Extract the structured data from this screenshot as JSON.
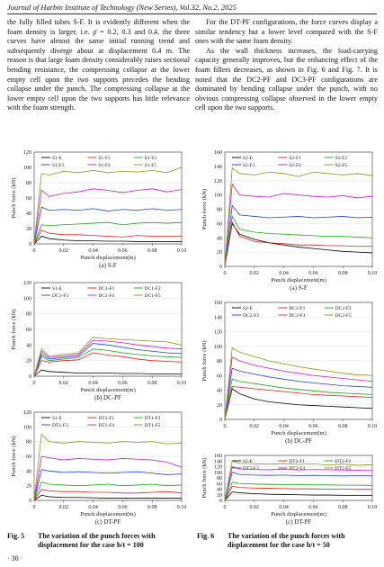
{
  "header": "Journal of Harbin Institute of Technology (New Series), Vol.32, No.2, 2025",
  "left_paragraphs": [
    "the fully filled tubes S-F. It is evidently different when the foam density is larger, i.e. ρ̄ = 0.2, 0.3 and 0.4, the three curves have almost the same initial running trend and subsequently diverge about at displacement 0.4 m. The reason is that large foam density considerably raises sectional bending resistance, the compressing collapse at the lower empty cell upon the two supports precedes the bending collapse under the punch. The compressing collapse at the lower empty cell upon the two supports has little relevance with the foam strength."
  ],
  "right_paragraphs": [
    "For the DT-PF configurations, the force curves display a similar tendency but a lower level compared with the S-F ones with the same foam density.",
    "As the wall thickness increases, the load-carrying capacity generally improves, but the enhancing effect of the foam fillers decreases, as shown in Fig. 6 and Fig. 7. It is noted that the DC2-PF and DC3-PF configurations are dominated by bending collapse under the punch, with no obvious compressing collapse observed in the lower empty cell upon the two supports."
  ],
  "figure_captions": [
    {
      "label": "Fig. 5",
      "text": "The variation of the punch forces with displacement for the case b/t = 100"
    },
    {
      "label": "Fig. 6",
      "text": "The variation of the punch forces with displacement for the case b/t = 50"
    }
  ],
  "page_number": "· 30 ·",
  "chart_data": [
    {
      "type": "line",
      "subtitle": "(a) S-F",
      "x_label": "Punch displacement(m)",
      "y_label": "Punch force (kN)",
      "x": [
        0,
        0.005,
        0.01,
        0.02,
        0.03,
        0.04,
        0.05,
        0.06,
        0.07,
        0.08,
        0.09,
        0.1
      ],
      "xlim": [
        0,
        0.1
      ],
      "xticks": [
        0,
        0.02,
        0.04,
        0.06,
        0.08,
        {
          "value": 0.1,
          "label": "0.10"
        }
      ],
      "ylim": [
        0,
        120
      ],
      "yticks": [
        0,
        20,
        40,
        60,
        80,
        100,
        120
      ],
      "grid": true,
      "series": [
        {
          "name": "S1-E",
          "color": "#000000",
          "values": [
            0,
            10,
            7,
            5,
            4,
            4,
            3.5,
            3.5,
            3,
            3,
            3,
            3
          ]
        },
        {
          "name": "S1-F1",
          "color": "#e02020",
          "values": [
            0,
            18,
            14,
            12,
            12,
            11,
            10,
            9,
            11,
            10,
            10,
            10
          ]
        },
        {
          "name": "S1-F2",
          "color": "#20a020",
          "values": [
            0,
            25,
            24,
            25,
            26,
            27,
            28,
            25,
            27,
            28,
            27,
            28
          ]
        },
        {
          "name": "S1-F3",
          "color": "#2040d0",
          "values": [
            0,
            48,
            44,
            45,
            44,
            46,
            43,
            45,
            44,
            46,
            44,
            45
          ]
        },
        {
          "name": "S1-F4",
          "color": "#c020c0",
          "values": [
            0,
            70,
            62,
            66,
            68,
            72,
            70,
            67,
            70,
            72,
            68,
            71
          ]
        },
        {
          "name": "S1-F5",
          "color": "#909020",
          "values": [
            0,
            92,
            90,
            95,
            93,
            96,
            93,
            95,
            94,
            96,
            93,
            100
          ]
        }
      ]
    },
    {
      "type": "line",
      "subtitle": "(b) DC-PF",
      "x_label": "Punch displacement(m)",
      "y_label": "Punch force (kN)",
      "x": [
        0,
        0.005,
        0.01,
        0.02,
        0.03,
        0.04,
        0.05,
        0.06,
        0.07,
        0.08,
        0.09,
        0.1
      ],
      "xlim": [
        0,
        0.1
      ],
      "xticks": [
        0,
        0.02,
        0.04,
        0.06,
        0.08,
        {
          "value": 0.1,
          "label": "0.10"
        }
      ],
      "ylim": [
        0,
        120
      ],
      "yticks": [
        0,
        20,
        40,
        60,
        80,
        100,
        120
      ],
      "grid": true,
      "series": [
        {
          "name": "S1-E",
          "color": "#000000",
          "values": [
            0,
            8,
            6,
            5,
            4,
            4,
            4,
            3.5,
            3.5,
            3,
            3,
            3
          ]
        },
        {
          "name": "DC1-F1",
          "color": "#e02020",
          "values": [
            0,
            20,
            18,
            20,
            21,
            30,
            27,
            25,
            22,
            20,
            19,
            18
          ]
        },
        {
          "name": "DC1-F2",
          "color": "#20a020",
          "values": [
            0,
            25,
            20,
            22,
            24,
            35,
            33,
            30,
            28,
            26,
            25,
            24
          ]
        },
        {
          "name": "DC1-F3",
          "color": "#2040d0",
          "values": [
            0,
            28,
            22,
            24,
            26,
            42,
            40,
            37,
            34,
            32,
            30,
            29
          ]
        },
        {
          "name": "DC1-F4",
          "color": "#c020c0",
          "values": [
            0,
            32,
            24,
            26,
            28,
            46,
            45,
            43,
            40,
            38,
            36,
            35
          ]
        },
        {
          "name": "DC1-F5",
          "color": "#909020",
          "values": [
            0,
            35,
            26,
            28,
            30,
            50,
            48,
            47,
            46,
            45,
            44,
            40
          ]
        }
      ]
    },
    {
      "type": "line",
      "subtitle": "(c) DT-PF",
      "x_label": "Punch displacement(m)",
      "y_label": "Punch force (kN)",
      "x": [
        0,
        0.005,
        0.01,
        0.02,
        0.03,
        0.04,
        0.05,
        0.06,
        0.07,
        0.08,
        0.09,
        0.1
      ],
      "xlim": [
        0,
        0.1
      ],
      "xticks": [
        0,
        0.02,
        0.04,
        0.06,
        0.08,
        {
          "value": 0.1,
          "label": "0.10"
        }
      ],
      "ylim": [
        0,
        120
      ],
      "yticks": [
        0,
        20,
        40,
        60,
        80,
        100,
        120
      ],
      "grid": true,
      "series": [
        {
          "name": "S1-E",
          "color": "#000000",
          "values": [
            0,
            7,
            5,
            4,
            4,
            3.5,
            3,
            3,
            3,
            3,
            3,
            3
          ]
        },
        {
          "name": "DT1-F1",
          "color": "#e02020",
          "values": [
            0,
            15,
            13,
            12,
            12,
            11,
            11,
            10,
            10,
            11,
            12,
            10
          ]
        },
        {
          "name": "DT1-F2",
          "color": "#20a020",
          "values": [
            0,
            25,
            22,
            21,
            20,
            21,
            22,
            20,
            21,
            22,
            20,
            21
          ]
        },
        {
          "name": "DT1-F3",
          "color": "#2040d0",
          "values": [
            0,
            42,
            40,
            38,
            39,
            38,
            37,
            38,
            39,
            37,
            35,
            36
          ]
        },
        {
          "name": "DT1-F4",
          "color": "#c020c0",
          "values": [
            0,
            60,
            58,
            55,
            57,
            56,
            55,
            57,
            56,
            55,
            52,
            45
          ]
        },
        {
          "name": "DT1-F5",
          "color": "#909020",
          "values": [
            0,
            90,
            80,
            78,
            80,
            79,
            78,
            80,
            79,
            80,
            77,
            78
          ]
        }
      ]
    },
    {
      "type": "line",
      "subtitle": "(a) S-F",
      "x_label": "Punch displacement(m)",
      "y_label": "Punch force (kN)",
      "x": [
        0,
        0.005,
        0.01,
        0.02,
        0.03,
        0.04,
        0.05,
        0.06,
        0.07,
        0.08,
        0.09,
        0.1
      ],
      "xlim": [
        0,
        0.1
      ],
      "xticks": [
        0,
        0.02,
        0.04,
        0.06,
        0.08,
        {
          "value": 0.1,
          "label": "0.10"
        }
      ],
      "ylim": [
        0,
        160
      ],
      "yticks": [
        0,
        20,
        40,
        60,
        80,
        100,
        120,
        140,
        160
      ],
      "grid": true,
      "series": [
        {
          "name": "S2-E",
          "color": "#000000",
          "values": [
            0,
            60,
            45,
            38,
            33,
            30,
            27,
            25,
            23,
            21,
            20,
            19
          ]
        },
        {
          "name": "S2-F1",
          "color": "#e02020",
          "values": [
            0,
            62,
            42,
            35,
            33,
            32,
            30,
            30,
            29,
            29,
            28,
            28
          ]
        },
        {
          "name": "S2-F2",
          "color": "#20a020",
          "values": [
            0,
            70,
            52,
            48,
            46,
            45,
            44,
            43,
            42,
            42,
            41,
            40
          ]
        },
        {
          "name": "S2-F3",
          "color": "#2040d0",
          "values": [
            0,
            85,
            72,
            70,
            68,
            69,
            70,
            68,
            69,
            70,
            68,
            69
          ]
        },
        {
          "name": "S2-F4",
          "color": "#c020c0",
          "values": [
            0,
            115,
            100,
            98,
            97,
            102,
            100,
            98,
            97,
            99,
            96,
            98
          ]
        },
        {
          "name": "S2-F5",
          "color": "#909020",
          "values": [
            0,
            138,
            130,
            128,
            132,
            130,
            126,
            132,
            130,
            128,
            130,
            127
          ]
        }
      ]
    },
    {
      "type": "line",
      "subtitle": "(b) DC-PF",
      "x_label": "Punch displacement(m)",
      "y_label": "Punch force (kN)",
      "x": [
        0,
        0.005,
        0.01,
        0.02,
        0.03,
        0.04,
        0.05,
        0.06,
        0.07,
        0.08,
        0.09,
        0.1
      ],
      "xlim": [
        0,
        0.1
      ],
      "xticks": [
        0,
        0.02,
        0.04,
        0.06,
        0.08,
        {
          "value": 0.1,
          "label": "0.10"
        }
      ],
      "ylim": [
        0,
        160
      ],
      "yticks": [
        0,
        20,
        40,
        60,
        80,
        100,
        120,
        140,
        160
      ],
      "grid": true,
      "series": [
        {
          "name": "S2-E",
          "color": "#000000",
          "values": [
            0,
            42,
            35,
            28,
            24,
            22,
            20,
            19,
            18,
            17,
            16,
            15
          ]
        },
        {
          "name": "DC2-F1",
          "color": "#e02020",
          "values": [
            0,
            45,
            44,
            42,
            40,
            38,
            36,
            34,
            33,
            32,
            31,
            30
          ]
        },
        {
          "name": "DC2-F2",
          "color": "#20a020",
          "values": [
            0,
            55,
            52,
            49,
            46,
            43,
            41,
            39,
            37,
            36,
            35,
            34
          ]
        },
        {
          "name": "DC2-F3",
          "color": "#2040d0",
          "values": [
            0,
            70,
            66,
            62,
            58,
            55,
            52,
            50,
            48,
            46,
            45,
            44
          ]
        },
        {
          "name": "DC2-F4",
          "color": "#c020c0",
          "values": [
            0,
            85,
            80,
            74,
            70,
            66,
            63,
            60,
            58,
            56,
            54,
            52
          ]
        },
        {
          "name": "DC2-F5",
          "color": "#909020",
          "values": [
            0,
            98,
            92,
            86,
            80,
            76,
            72,
            69,
            66,
            63,
            61,
            60
          ]
        }
      ]
    },
    {
      "type": "line",
      "subtitle": "(c) DT-PF",
      "x_label": "Punch displacement(m)",
      "y_label": "Punch force (kN)",
      "x": [
        0,
        0.005,
        0.01,
        0.02,
        0.03,
        0.04,
        0.05,
        0.06,
        0.07,
        0.08,
        0.09,
        0.1
      ],
      "xlim": [
        0,
        0.1
      ],
      "xticks": [
        0,
        0.02,
        0.04,
        0.06,
        0.08,
        {
          "value": 0.1,
          "label": "0.10"
        }
      ],
      "ylim": [
        0,
        160
      ],
      "yticks": [
        0,
        20,
        40,
        60,
        80,
        100,
        120,
        140,
        160
      ],
      "grid": true,
      "series": [
        {
          "name": "S2-E",
          "color": "#000000",
          "values": [
            0,
            30,
            27,
            24,
            22,
            21,
            20,
            19,
            19,
            18,
            18,
            18
          ]
        },
        {
          "name": "DT2-F1",
          "color": "#e02020",
          "values": [
            0,
            50,
            46,
            44,
            43,
            42,
            41,
            41,
            40,
            40,
            39,
            39
          ]
        },
        {
          "name": "DT2-F2",
          "color": "#20a020",
          "values": [
            0,
            65,
            60,
            58,
            57,
            56,
            56,
            55,
            55,
            54,
            54,
            53
          ]
        },
        {
          "name": "DT2-F3",
          "color": "#2040d0",
          "values": [
            0,
            100,
            92,
            90,
            89,
            90,
            88,
            89,
            88,
            87,
            88,
            87
          ]
        },
        {
          "name": "DT2-F4",
          "color": "#c020c0",
          "values": [
            0,
            120,
            112,
            110,
            109,
            111,
            108,
            110,
            109,
            108,
            107,
            106
          ]
        },
        {
          "name": "DT2-F5",
          "color": "#909020",
          "values": [
            0,
            140,
            132,
            130,
            129,
            131,
            128,
            130,
            126,
            129,
            125,
            127
          ]
        }
      ]
    }
  ]
}
